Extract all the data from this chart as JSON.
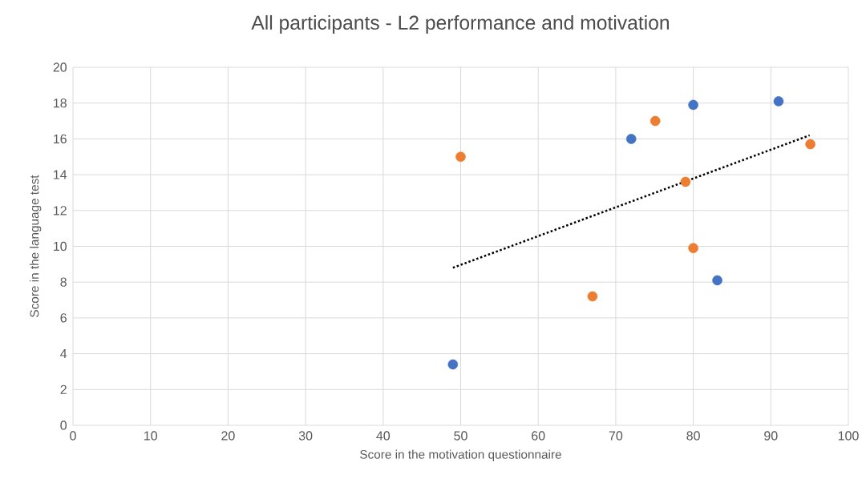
{
  "chart_data": {
    "type": "scatter",
    "title": "All participants - L2 performance and motivation",
    "xlabel": "Score in the motivation questionnaire",
    "ylabel": "Score in the language test",
    "xlim": [
      0,
      100
    ],
    "ylim": [
      0,
      20
    ],
    "xticks": [
      0,
      10,
      20,
      30,
      40,
      50,
      60,
      70,
      80,
      90,
      100
    ],
    "yticks": [
      0,
      2,
      4,
      6,
      8,
      10,
      12,
      14,
      16,
      18,
      20
    ],
    "grid": true,
    "marker": "circle",
    "series": [
      {
        "color": "#4472c4",
        "x": [
          49,
          72,
          80,
          91,
          83.1
        ],
        "values": [
          3.4,
          16,
          17.9,
          18.1,
          8.1
        ]
      },
      {
        "color": "#ed7d31",
        "x": [
          50,
          67,
          75.1,
          79,
          80,
          95.1
        ],
        "values": [
          15,
          7.2,
          17,
          13.6,
          9.9,
          15.7
        ]
      },
      {
        "type": "line",
        "color": "#000000",
        "marker": "none",
        "line_style": "dotted",
        "x": [
          49,
          95
        ],
        "values": [
          8.8,
          16.2
        ]
      }
    ]
  }
}
